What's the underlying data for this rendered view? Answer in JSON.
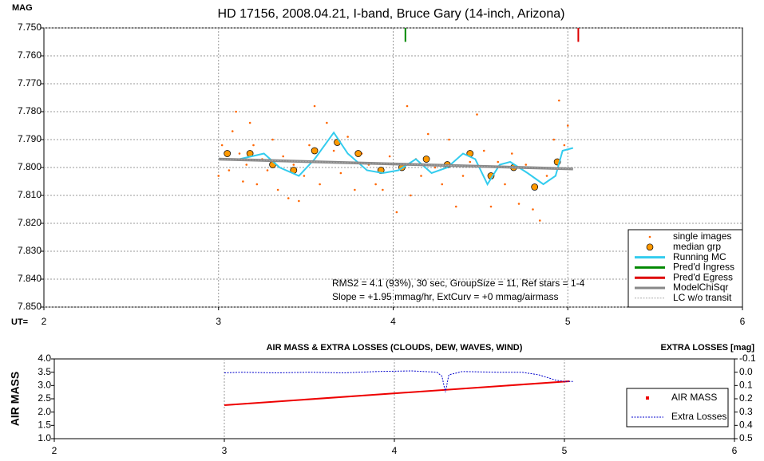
{
  "chart_data": [
    {
      "type": "line",
      "title": "HD 17156, 2008.04.21, I-band, Bruce Gary (14-inch, Arizona)",
      "y_label": "MAG",
      "x_label": "UT=",
      "xlim": [
        2,
        6
      ],
      "xticks": [
        2,
        3,
        4,
        5,
        6
      ],
      "ylim": [
        7.75,
        7.85
      ],
      "y_inverted": true,
      "yticks": [
        {
          "value": 7.75,
          "label": "7.750"
        },
        {
          "value": 7.76,
          "label": "7.760"
        },
        {
          "value": 7.77,
          "label": "7.770"
        },
        {
          "value": 7.78,
          "label": "7.780"
        },
        {
          "value": 7.79,
          "label": "7.790"
        },
        {
          "value": 7.8,
          "label": "7.800"
        },
        {
          "value": 7.81,
          "label": "7.810"
        },
        {
          "value": 7.82,
          "label": "7.820"
        },
        {
          "value": 7.83,
          "label": "7.830"
        },
        {
          "value": 7.84,
          "label": "7.840"
        },
        {
          "value": 7.85,
          "label": "7.850"
        }
      ],
      "grid": true,
      "legend": "lower right",
      "annotations": [
        "RMS2 = 4.1 (93%), 30 sec, GroupSize = 11, Ref stars = 1-4",
        "Slope = +1.95 mmag/hr, ExtCurv = +0 mmag/airmass"
      ],
      "series": [
        {
          "name": "single images",
          "color": "#ff6600",
          "kind": "dot",
          "x": [
            3.0,
            3.02,
            3.04,
            3.06,
            3.08,
            3.1,
            3.12,
            3.14,
            3.16,
            3.18,
            3.2,
            3.22,
            3.25,
            3.28,
            3.31,
            3.34,
            3.37,
            3.4,
            3.43,
            3.46,
            3.49,
            3.52,
            3.55,
            3.58,
            3.62,
            3.66,
            3.7,
            3.74,
            3.78,
            3.82,
            3.86,
            3.9,
            3.94,
            3.98,
            4.02,
            4.05,
            4.08,
            4.1,
            4.13,
            4.16,
            4.2,
            4.24,
            4.28,
            4.32,
            4.36,
            4.4,
            4.44,
            4.48,
            4.52,
            4.56,
            4.6,
            4.64,
            4.68,
            4.72,
            4.76,
            4.8,
            4.84,
            4.88,
            4.92,
            4.95,
            4.98,
            5.0
          ],
          "values": [
            7.803,
            7.792,
            7.797,
            7.801,
            7.787,
            7.78,
            7.795,
            7.805,
            7.799,
            7.784,
            7.792,
            7.806,
            7.797,
            7.801,
            7.79,
            7.808,
            7.796,
            7.811,
            7.799,
            7.812,
            7.803,
            7.792,
            7.778,
            7.806,
            7.784,
            7.794,
            7.802,
            7.789,
            7.808,
            7.795,
            7.799,
            7.806,
            7.808,
            7.796,
            7.816,
            7.8,
            7.778,
            7.81,
            7.797,
            7.803,
            7.788,
            7.8,
            7.806,
            7.79,
            7.814,
            7.803,
            7.798,
            7.781,
            7.794,
            7.814,
            7.798,
            7.806,
            7.795,
            7.813,
            7.799,
            7.815,
            7.819,
            7.803,
            7.79,
            7.776,
            7.792,
            7.785
          ]
        },
        {
          "name": "median grp",
          "color": "#ff9900",
          "kind": "circle",
          "x": [
            3.05,
            3.18,
            3.31,
            3.43,
            3.55,
            3.68,
            3.8,
            3.93,
            4.05,
            4.19,
            4.31,
            4.44,
            4.56,
            4.69,
            4.81,
            4.94
          ],
          "values": [
            7.795,
            7.795,
            7.799,
            7.801,
            7.794,
            7.791,
            7.795,
            7.801,
            7.8,
            7.797,
            7.799,
            7.795,
            7.803,
            7.8,
            7.807,
            7.798
          ]
        },
        {
          "name": "Running MC",
          "color": "#33ccee",
          "kind": "line",
          "x": [
            3.0,
            3.12,
            3.26,
            3.35,
            3.46,
            3.55,
            3.66,
            3.74,
            3.85,
            3.94,
            4.03,
            4.13,
            4.22,
            4.31,
            4.4,
            4.47,
            4.54,
            4.61,
            4.67,
            4.77,
            4.86,
            4.93,
            4.97,
            5.03
          ],
          "values": [
            7.797,
            7.797,
            7.795,
            7.8,
            7.803,
            7.797,
            7.7875,
            7.795,
            7.801,
            7.802,
            7.801,
            7.797,
            7.802,
            7.8,
            7.795,
            7.797,
            7.806,
            7.799,
            7.798,
            7.802,
            7.806,
            7.803,
            7.794,
            7.793
          ]
        },
        {
          "name": "Pred'd Ingress",
          "color": "#008800",
          "kind": "line",
          "x": [
            4.07,
            4.07
          ],
          "values": [
            7.75,
            7.755
          ]
        },
        {
          "name": "Pred'd Egress",
          "color": "#dd0000",
          "kind": "line",
          "x": [
            5.06,
            5.06
          ],
          "values": [
            7.75,
            7.755
          ]
        },
        {
          "name": "ModelChiSqr",
          "color": "#888888",
          "kind": "line",
          "x": [
            3.0,
            5.03
          ],
          "values": [
            7.797,
            7.8005
          ]
        },
        {
          "name": "LC w/o transit",
          "color": "#aaaaaa",
          "kind": "dashed",
          "x": [
            3.0,
            5.03
          ],
          "values": [
            7.797,
            7.8005
          ]
        }
      ]
    },
    {
      "type": "line",
      "title": "AIR MASS & EXTRA LOSSES (CLOUDS, DEW, WAVES, WIND)",
      "y_label": "AIR MASS",
      "y2_label": "EXTRA LOSSES [mag]",
      "xlim": [
        2,
        6
      ],
      "xticks": [
        2,
        3,
        4,
        5,
        6
      ],
      "ylim": [
        1,
        4
      ],
      "yticks": [
        {
          "value": 1,
          "label": "1.0"
        },
        1.5,
        {
          "value": 2,
          "label": "2.0"
        },
        2.5,
        {
          "value": 3,
          "label": "3.0"
        },
        3.5,
        {
          "value": 4,
          "label": "4.0"
        }
      ],
      "y2lim": [
        -0.1,
        0.5
      ],
      "y2_inverted": true,
      "y2ticks": [
        -0.1,
        {
          "value": 0,
          "label": "0.0"
        },
        0.1,
        0.2,
        0.3,
        0.4,
        0.5
      ],
      "grid": true,
      "legend": "lower right",
      "series": [
        {
          "name": "AIR MASS",
          "color": "#ee0000",
          "kind": "line",
          "x": [
            3.0,
            5.03
          ],
          "values": [
            2.26,
            3.16
          ]
        },
        {
          "name": "Extra Losses",
          "color": "#0000cc",
          "kind": "dashed",
          "axis": "y2",
          "x": [
            3.0,
            3.1,
            3.3,
            3.5,
            3.7,
            3.9,
            4.1,
            4.25,
            4.28,
            4.3,
            4.32,
            4.4,
            4.6,
            4.75,
            4.85,
            4.95,
            5.0,
            5.05
          ],
          "values": [
            0.005,
            0.0,
            0.005,
            0.0,
            0.005,
            -0.005,
            -0.01,
            0.0,
            0.03,
            0.15,
            0.02,
            -0.005,
            0.0,
            0.0,
            0.02,
            0.06,
            0.07,
            0.07
          ]
        }
      ]
    }
  ]
}
